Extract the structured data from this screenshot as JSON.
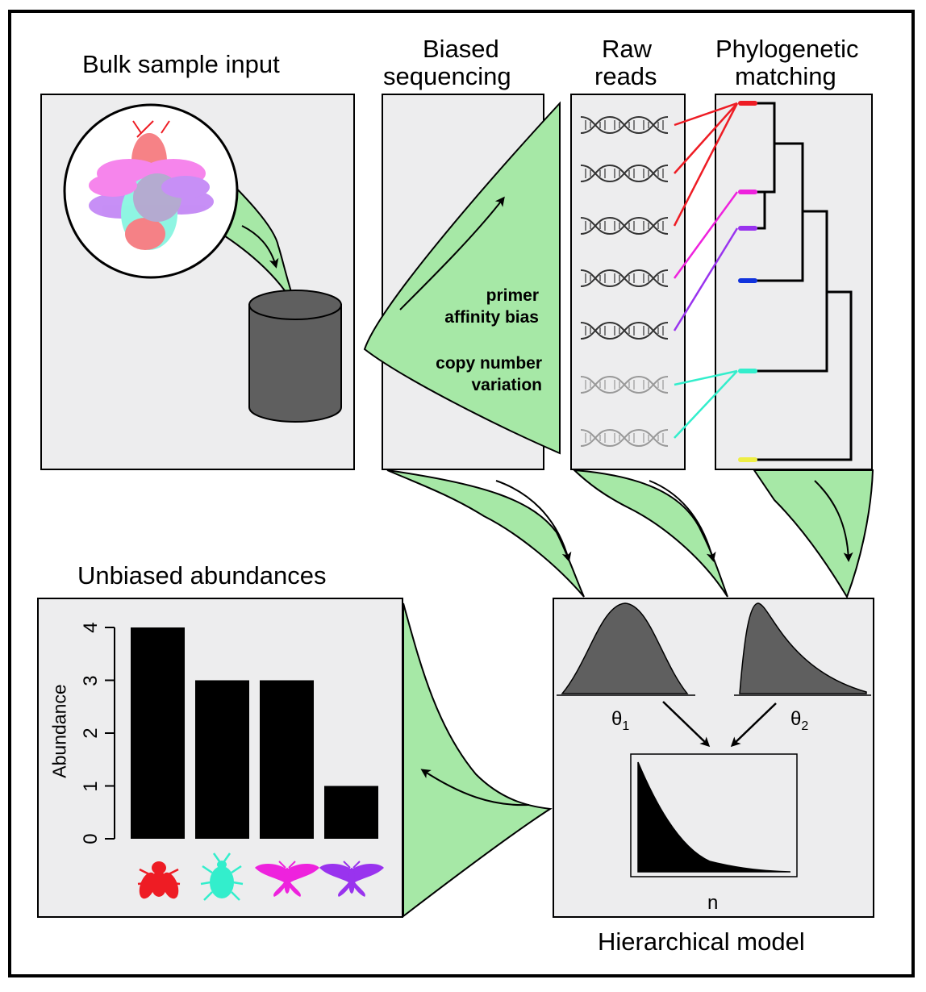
{
  "titles": {
    "bulk": "Bulk sample input",
    "biased_1": "Biased",
    "biased_2": "sequencing",
    "raw_1": "Raw",
    "raw_2": "reads",
    "phylo_1": "Phylogenetic",
    "phylo_2": "matching",
    "unbiased": "Unbiased abundances",
    "hier": "Hierarchical model"
  },
  "bias_labels": {
    "primer_1": "primer",
    "primer_2": "affinity bias",
    "copy_1": "copy number",
    "copy_2": "variation"
  },
  "model": {
    "theta1": "θ",
    "theta1_sub": "1",
    "theta2": "θ",
    "theta2_sub": "2",
    "n": "n"
  },
  "colors": {
    "red": "#ee1c24",
    "magenta": "#ee22dd",
    "purple": "#9933ee",
    "blue": "#1133dd",
    "cyan": "#33eecc",
    "yellow": "#eeee44",
    "green_fill": "#a6e8a6",
    "panel_bg": "#ededee",
    "dark_gray": "#5f5f5f"
  },
  "chart_data": {
    "type": "bar",
    "ylabel": "Abundance",
    "yticks": [
      "0",
      "1",
      "2",
      "3",
      "4"
    ],
    "ylim": [
      0,
      4
    ],
    "categories": [
      "fly-red",
      "beetle-cyan",
      "moth-magenta",
      "moth-purple"
    ],
    "values": [
      4,
      3,
      3,
      1
    ]
  },
  "icons": [
    "fly-icon",
    "beetle-icon",
    "moth-icon",
    "moth-icon",
    "dna-icon",
    "cylinder-icon",
    "bell-curve-icon",
    "skewed-curve-icon",
    "exponential-curve-icon"
  ]
}
